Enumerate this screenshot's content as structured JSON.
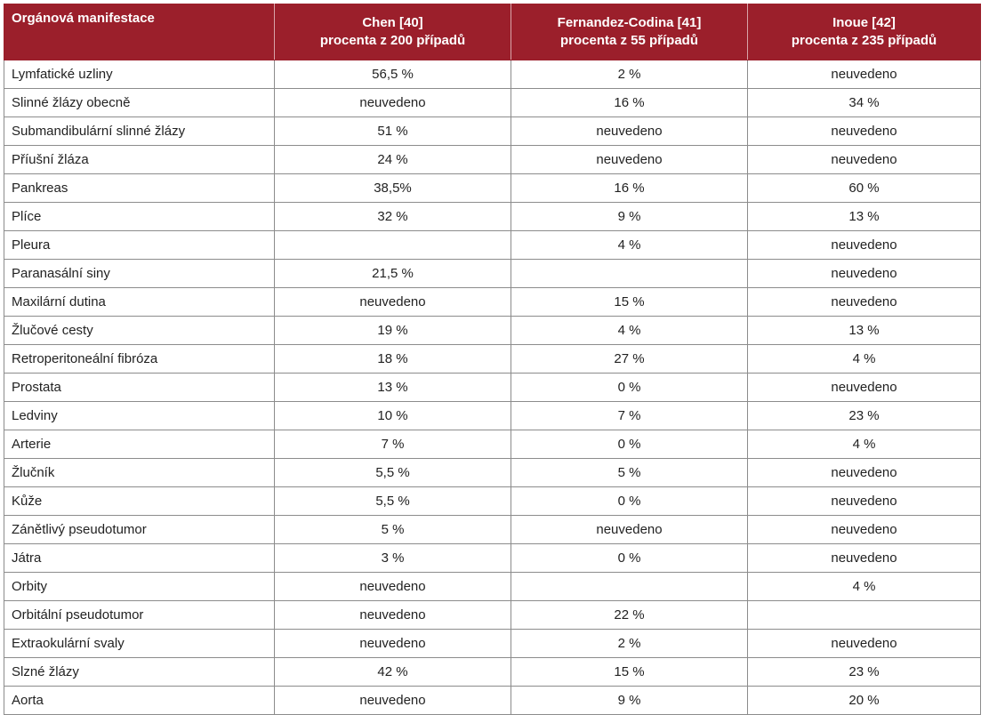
{
  "header": {
    "col0": "Orgánová manifestace",
    "col1_line1": "Chen [40]",
    "col1_line2": "procenta z 200 případů",
    "col2_line1": "Fernandez-Codina [41]",
    "col2_line2": "procenta z 55 případů",
    "col3_line1": "Inoue [42]",
    "col3_line2": "procenta z 235 případů"
  },
  "colors": {
    "header_bg": "#9b1f2b",
    "header_text": "#ffffff",
    "grid": "#8c8c8c"
  },
  "rows": [
    [
      "Lymfatické uzliny",
      "56,5 %",
      "2 %",
      "neuvedeno"
    ],
    [
      "Slinné žlázy obecně",
      "neuvedeno",
      "16 %",
      "34 %"
    ],
    [
      "Submandibulární slinné žlázy",
      "51 %",
      "neuvedeno",
      "neuvedeno"
    ],
    [
      "Příušní žláza",
      "24 %",
      "neuvedeno",
      "neuvedeno"
    ],
    [
      "Pankreas",
      "38,5%",
      "16 %",
      "60 %"
    ],
    [
      "Plíce",
      "32 %",
      "9 %",
      "13 %"
    ],
    [
      "Pleura",
      "",
      "4 %",
      "neuvedeno"
    ],
    [
      "Paranasální siny",
      "21,5 %",
      "",
      "neuvedeno"
    ],
    [
      "Maxilární dutina",
      "neuvedeno",
      "15 %",
      "neuvedeno"
    ],
    [
      "Žlučové cesty",
      "19 %",
      "4 %",
      "13 %"
    ],
    [
      "Retroperitoneální fibróza",
      "18 %",
      "27 %",
      "4 %"
    ],
    [
      "Prostata",
      "13 %",
      "0 %",
      "neuvedeno"
    ],
    [
      "Ledviny",
      "10 %",
      "7 %",
      "23 %"
    ],
    [
      "Arterie",
      "7 %",
      "0 %",
      "4 %"
    ],
    [
      "Žlučník",
      "5,5 %",
      "5 %",
      "neuvedeno"
    ],
    [
      "Kůže",
      "5,5 %",
      "0 %",
      "neuvedeno"
    ],
    [
      "Zánětlivý pseudotumor",
      "5 %",
      "neuvedeno",
      "neuvedeno"
    ],
    [
      "Játra",
      "3 %",
      "0 %",
      "neuvedeno"
    ],
    [
      "Orbity",
      "neuvedeno",
      "",
      "4 %"
    ],
    [
      "Orbitální pseudotumor",
      "neuvedeno",
      "22 %",
      ""
    ],
    [
      "Extraokulární svaly",
      "neuvedeno",
      "2 %",
      "neuvedeno"
    ],
    [
      "Slzné žlázy",
      "42 %",
      "15 %",
      "23 %"
    ],
    [
      "Aorta",
      "neuvedeno",
      "9 %",
      "20 %"
    ]
  ]
}
